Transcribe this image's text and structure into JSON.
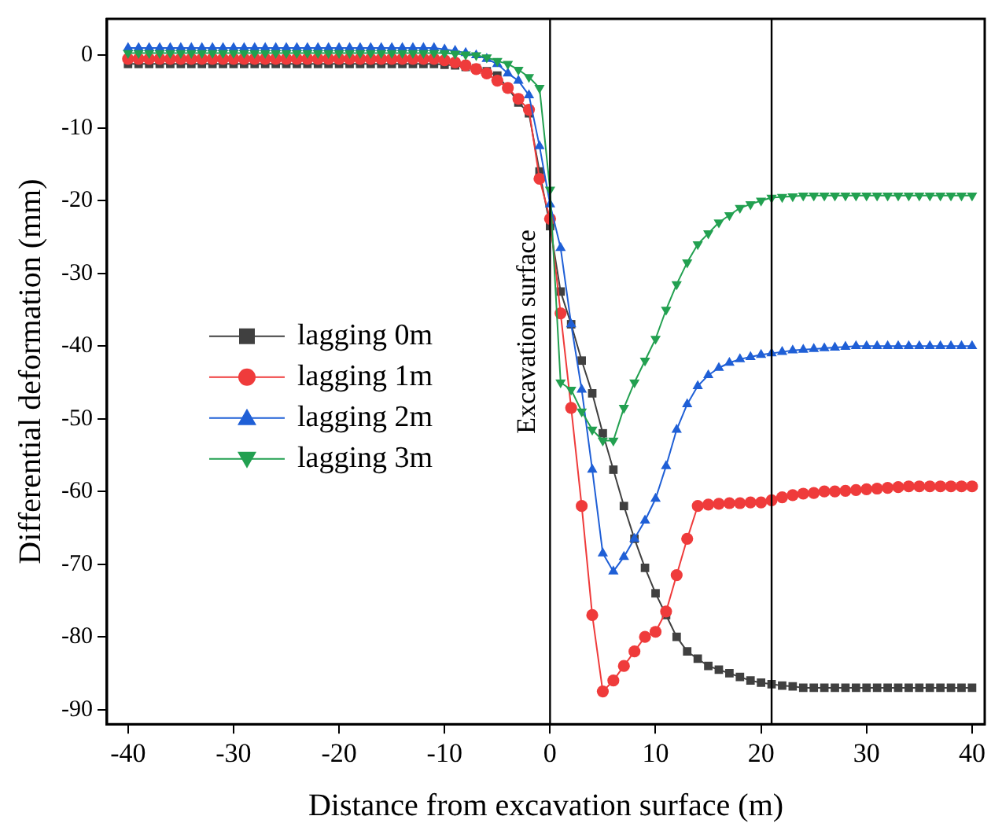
{
  "chart_data": {
    "type": "line",
    "xlabel": "Distance from excavation surface (m)",
    "ylabel": "Differential deformation (mm)",
    "x": [
      -40,
      -39,
      -38,
      -37,
      -36,
      -35,
      -34,
      -33,
      -32,
      -31,
      -30,
      -29,
      -28,
      -27,
      -26,
      -25,
      -24,
      -23,
      -22,
      -21,
      -20,
      -19,
      -18,
      -17,
      -16,
      -15,
      -14,
      -13,
      -12,
      -11,
      -10,
      -9,
      -8,
      -7,
      -6,
      -5,
      -4,
      -3,
      -2,
      -1,
      0,
      1,
      2,
      3,
      4,
      5,
      6,
      7,
      8,
      9,
      10,
      11,
      12,
      13,
      14,
      15,
      16,
      17,
      18,
      19,
      20,
      21,
      22,
      23,
      24,
      25,
      26,
      27,
      28,
      29,
      30,
      31,
      32,
      33,
      34,
      35,
      36,
      37,
      38,
      39,
      40
    ],
    "xlim": [
      -42,
      41.2
    ],
    "xticks": [
      -40,
      -30,
      -20,
      -10,
      0,
      10,
      20,
      30,
      40
    ],
    "ylim": [
      -92,
      5
    ],
    "yticks": [
      0,
      -10,
      -20,
      -30,
      -40,
      -50,
      -60,
      -70,
      -80,
      -90
    ],
    "grid": false,
    "legend": "center left",
    "ref_lines": [
      {
        "axis": "x",
        "value": 0,
        "label": "Excavation surface",
        "color": "#000000"
      },
      {
        "axis": "x",
        "value": 21,
        "color": "#000000"
      }
    ],
    "series": [
      {
        "name": "lagging 0m",
        "color": "#404040",
        "marker": "square",
        "values": [
          -1.2,
          -1.2,
          -1.2,
          -1.2,
          -1.2,
          -1.2,
          -1.2,
          -1.2,
          -1.2,
          -1.2,
          -1.2,
          -1.2,
          -1.2,
          -1.2,
          -1.2,
          -1.2,
          -1.2,
          -1.2,
          -1.2,
          -1.2,
          -1.2,
          -1.2,
          -1.2,
          -1.2,
          -1.2,
          -1.2,
          -1.2,
          -1.2,
          -1.2,
          -1.2,
          -1.3,
          -1.4,
          -1.6,
          -1.8,
          -2.2,
          -2.8,
          -4.5,
          -6.5,
          -8,
          -16,
          -23.5,
          -32.5,
          -37,
          -42,
          -46.5,
          -52,
          -57,
          -62,
          -66.5,
          -70.5,
          -74,
          -77,
          -80,
          -82,
          -83,
          -84,
          -84.5,
          -85,
          -85.5,
          -86,
          -86.3,
          -86.5,
          -86.7,
          -86.8,
          -87,
          -87,
          -87,
          -87,
          -87,
          -87,
          -87,
          -87,
          -87,
          -87,
          -87,
          -87,
          -87,
          -87,
          -87,
          -87,
          -87
        ]
      },
      {
        "name": "lagging 1m",
        "color": "#ef3b3b",
        "marker": "circle",
        "values": [
          -0.5,
          -0.5,
          -0.5,
          -0.5,
          -0.5,
          -0.5,
          -0.5,
          -0.5,
          -0.5,
          -0.5,
          -0.5,
          -0.5,
          -0.5,
          -0.5,
          -0.5,
          -0.5,
          -0.5,
          -0.5,
          -0.5,
          -0.5,
          -0.5,
          -0.5,
          -0.5,
          -0.5,
          -0.5,
          -0.5,
          -0.5,
          -0.5,
          -0.5,
          -0.5,
          -0.7,
          -1,
          -1.4,
          -1.9,
          -2.5,
          -3.5,
          -4.5,
          -6,
          -7.5,
          -17,
          -22.5,
          -35.5,
          -48.5,
          -62,
          -77,
          -87.5,
          -86,
          -84,
          -82,
          -80,
          -79.3,
          -76.5,
          -71.5,
          -66.5,
          -62,
          -61.8,
          -61.7,
          -61.6,
          -61.6,
          -61.5,
          -61.5,
          -61.2,
          -60.8,
          -60.5,
          -60.3,
          -60.2,
          -60,
          -60,
          -59.9,
          -59.8,
          -59.7,
          -59.6,
          -59.5,
          -59.4,
          -59.3,
          -59.3,
          -59.3,
          -59.3,
          -59.3,
          -59.3,
          -59.3
        ]
      },
      {
        "name": "lagging 2m",
        "color": "#1f5fd6",
        "marker": "triangle",
        "values": [
          1,
          1,
          1,
          1,
          1,
          1,
          1,
          1,
          1,
          1,
          1,
          1,
          1,
          1,
          1,
          1,
          1,
          1,
          1,
          1,
          1,
          1,
          1,
          1,
          1,
          1,
          1,
          1,
          1,
          1,
          0.8,
          0.6,
          0.3,
          0,
          -0.5,
          -1.2,
          -2.5,
          -3.5,
          -5.5,
          -12.5,
          -20.5,
          -26.5,
          -37,
          -46,
          -57,
          -68.5,
          -71,
          -69,
          -66.5,
          -64,
          -61,
          -56.5,
          -51.5,
          -48,
          -45.5,
          -44,
          -43,
          -42.3,
          -41.8,
          -41.5,
          -41.2,
          -41,
          -40.8,
          -40.6,
          -40.5,
          -40.4,
          -40.3,
          -40.2,
          -40.1,
          -40,
          -40,
          -40,
          -40,
          -40,
          -40,
          -40,
          -40,
          -40,
          -40,
          -40,
          -40
        ]
      },
      {
        "name": "lagging 3m",
        "color": "#22a050",
        "marker": "triangle-down",
        "values": [
          0.3,
          0.3,
          0.3,
          0.3,
          0.3,
          0.3,
          0.3,
          0.3,
          0.3,
          0.3,
          0.3,
          0.3,
          0.3,
          0.3,
          0.3,
          0.3,
          0.3,
          0.3,
          0.3,
          0.3,
          0.3,
          0.3,
          0.3,
          0.3,
          0.3,
          0.3,
          0.3,
          0.3,
          0.3,
          0.3,
          0.3,
          0.2,
          0.1,
          0,
          -0.3,
          -0.8,
          -1.2,
          -2,
          -3,
          -4.5,
          -18.5,
          -45,
          -46,
          -49,
          -51.5,
          -53,
          -53,
          -48.5,
          -45,
          -42,
          -39,
          -35,
          -31.5,
          -28.5,
          -26,
          -24.5,
          -23,
          -22,
          -21,
          -20.5,
          -20,
          -19.6,
          -19.5,
          -19.4,
          -19.3,
          -19.3,
          -19.3,
          -19.3,
          -19.3,
          -19.3,
          -19.3,
          -19.3,
          -19.3,
          -19.3,
          -19.3,
          -19.3,
          -19.3,
          -19.3,
          -19.3,
          -19.3,
          -19.3
        ]
      }
    ]
  }
}
